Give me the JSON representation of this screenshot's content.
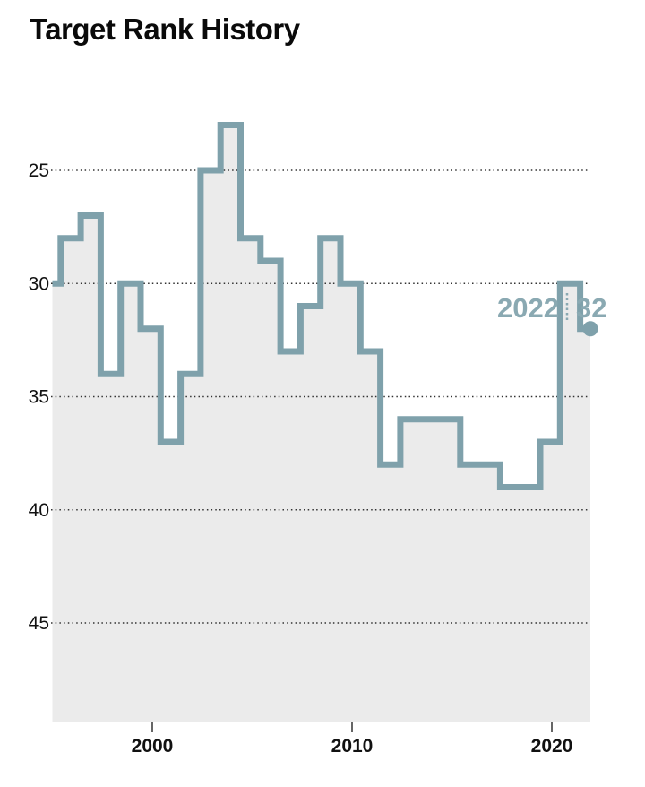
{
  "page": {
    "title": "Target Rank History"
  },
  "chart_data": {
    "type": "line",
    "subtype": "step",
    "title": "Target Rank History",
    "xlabel": "",
    "ylabel": "",
    "x": [
      1995,
      1996,
      1997,
      1998,
      1999,
      2000,
      2001,
      2002,
      2003,
      2004,
      2005,
      2006,
      2007,
      2008,
      2009,
      2010,
      2011,
      2012,
      2013,
      2014,
      2015,
      2016,
      2017,
      2018,
      2019,
      2020,
      2021,
      2022
    ],
    "values": [
      30,
      28,
      27,
      34,
      30,
      32,
      37,
      34,
      25,
      23,
      28,
      29,
      33,
      31,
      28,
      30,
      33,
      38,
      36,
      36,
      36,
      38,
      38,
      39,
      39,
      37,
      30,
      32
    ],
    "y_ticks": [
      25,
      30,
      35,
      40,
      45
    ],
    "x_ticks": [
      2000,
      2010,
      2020
    ],
    "y_axis_inverted": true,
    "grid": "horizontal-dotted",
    "legend_position": "none",
    "annotation": {
      "label_year": "2022",
      "label_rank": "32"
    },
    "colors": {
      "line": "#7fa1ab",
      "fill": "#ebebeb",
      "annotation": "#8aa9b2",
      "grid": "#333333",
      "text": "#111111"
    }
  }
}
